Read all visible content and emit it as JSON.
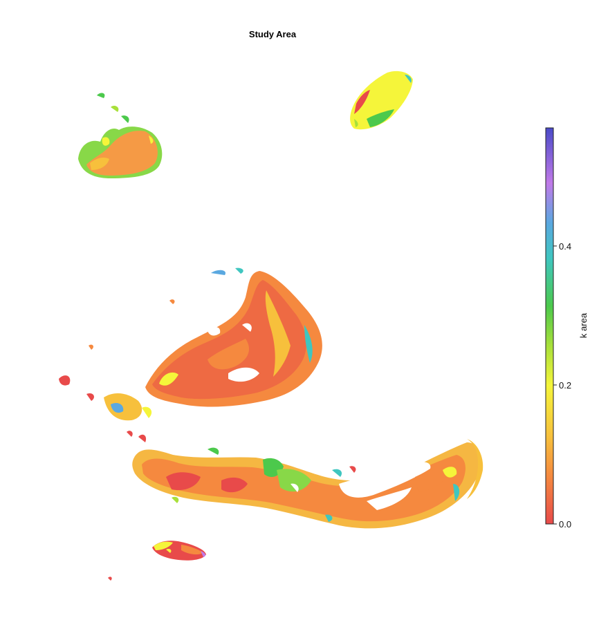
{
  "title": "Study Area",
  "colorbar": {
    "label": "k area",
    "range": [
      0.0,
      0.57
    ],
    "ticks": [
      {
        "value": 0.0,
        "label": "0.0"
      },
      {
        "value": 0.2,
        "label": "0.2"
      },
      {
        "value": 0.4,
        "label": "0.4"
      }
    ],
    "colors": [
      "#e84a4a",
      "#f5893f",
      "#f7c03c",
      "#f5f53a",
      "#a8e03a",
      "#4cc94c",
      "#3fc6c0",
      "#5aa8e0",
      "#c07ae8",
      "#4a4ac8"
    ]
  },
  "regions": [
    {
      "name": "north-west-island",
      "dominant_class": "orange"
    },
    {
      "name": "north-east-island",
      "dominant_class": "yellow"
    },
    {
      "name": "central-island",
      "dominant_class": "red-orange"
    },
    {
      "name": "southern-long-island",
      "dominant_class": "orange"
    },
    {
      "name": "south-small-island",
      "dominant_class": "red"
    }
  ]
}
